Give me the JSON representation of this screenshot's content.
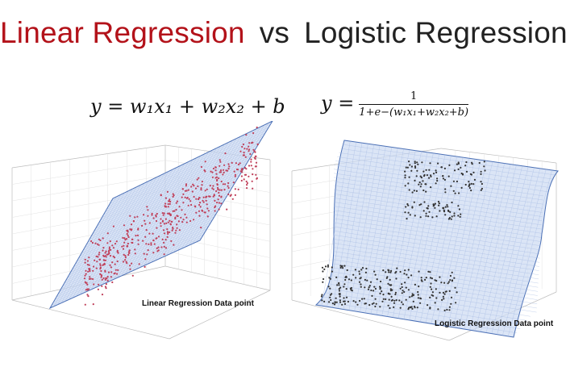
{
  "title": {
    "left": "Linear Regression",
    "middle": "vs",
    "right": "Logistic Regression"
  },
  "formulas": {
    "linear": "y = w₁x₁ + w₂x₂ + b",
    "logistic_lhs": "y =",
    "logistic_num": "1",
    "logistic_den": "1+e−(w₁x₁+w₂x₂+b)"
  },
  "plots": {
    "linear_label": "Linear Regression Data point",
    "logistic_label": "Logistic Regression Data point"
  },
  "colors": {
    "title_red": "#b3121a",
    "plane_fill": "#cfdcf3",
    "plane_edge": "#4a6fb5",
    "points_linear": "#c0405a",
    "points_logistic": "#333333"
  }
}
